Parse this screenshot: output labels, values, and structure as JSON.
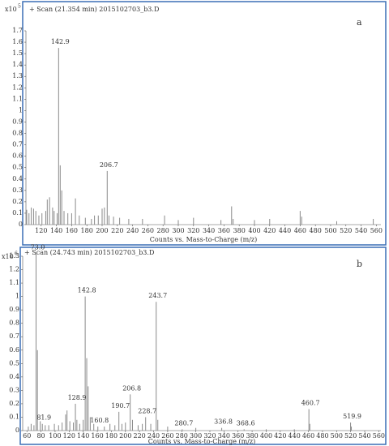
{
  "chart_data": [
    {
      "type": "stem",
      "title": "+ Scan (21.354 min) 2015102703_b3.D",
      "panel_label": "a",
      "y_multiplier": "x10",
      "y_exponent": 5,
      "x_label": "Counts vs. Mass-to-Charge (m/z)",
      "color": "#8a8a8a",
      "x": [
        101,
        104,
        107,
        110,
        113,
        117,
        121,
        126,
        128,
        131,
        135,
        137,
        141,
        142.9,
        145,
        147,
        150,
        155,
        160,
        165,
        170,
        178,
        186,
        190,
        195,
        200,
        203,
        206.7,
        209,
        215,
        223,
        235,
        253,
        282,
        300,
        320,
        356,
        370,
        372,
        400,
        420,
        460,
        462,
        508,
        556
      ],
      "values": [
        0.13,
        0.1,
        0.15,
        0.14,
        0.12,
        0.08,
        0.1,
        0.12,
        0.22,
        0.24,
        0.15,
        0.12,
        0.1,
        1.55,
        0.52,
        0.3,
        0.12,
        0.1,
        0.1,
        0.23,
        0.08,
        0.06,
        0.05,
        0.08,
        0.08,
        0.14,
        0.15,
        0.47,
        0.08,
        0.07,
        0.06,
        0.05,
        0.05,
        0.08,
        0.04,
        0.06,
        0.04,
        0.16,
        0.05,
        0.04,
        0.05,
        0.12,
        0.07,
        0.03,
        0.05
      ],
      "annotations": [
        {
          "text": "142.9",
          "x": 142.9,
          "y": 1.55
        },
        {
          "text": "206.7",
          "x": 206.7,
          "y": 0.47
        }
      ],
      "xlim": [
        100,
        566
      ],
      "ylim": [
        0,
        1.7
      ],
      "xticks": [
        120,
        140,
        160,
        180,
        200,
        220,
        240,
        260,
        280,
        300,
        320,
        340,
        360,
        380,
        400,
        420,
        440,
        460,
        480,
        500,
        520,
        540,
        560
      ],
      "yticks": [
        0,
        0.1,
        0.2,
        0.3,
        0.4,
        0.5,
        0.6,
        0.7,
        0.8,
        0.9,
        1,
        1.1,
        1.2,
        1.3,
        1.4,
        1.5,
        1.6,
        1.7
      ]
    },
    {
      "type": "stem",
      "title": "+ Scan (24.743 min) 2015102703_b3.D",
      "panel_label": "b",
      "y_multiplier": "x10",
      "y_exponent": 6,
      "x_label": "Counts vs. Mass-to-Charge (m/z)",
      "color": "#8a8a8a",
      "x": [
        62,
        66,
        70,
        73,
        75,
        79,
        81.9,
        86,
        91,
        99,
        105,
        110,
        115,
        117,
        121,
        126,
        128.9,
        131,
        135,
        140,
        142.8,
        145,
        147,
        150,
        155,
        160.8,
        170,
        178,
        185,
        190.7,
        195,
        200,
        206.8,
        210,
        218,
        224,
        228.7,
        236,
        243.7,
        246,
        260,
        280.7,
        300,
        336.8,
        368.6,
        400,
        440,
        460.7,
        462,
        519.9,
        521
      ],
      "values": [
        0.03,
        0.05,
        0.04,
        1.32,
        0.6,
        0.07,
        0.05,
        0.04,
        0.04,
        0.05,
        0.04,
        0.06,
        0.12,
        0.15,
        0.07,
        0.06,
        0.2,
        0.08,
        0.05,
        0.08,
        1.0,
        0.54,
        0.33,
        0.1,
        0.05,
        0.03,
        0.03,
        0.05,
        0.04,
        0.14,
        0.05,
        0.06,
        0.27,
        0.08,
        0.04,
        0.05,
        0.1,
        0.05,
        0.96,
        0.08,
        0.03,
        0.01,
        0.02,
        0.02,
        0.01,
        0.01,
        0.01,
        0.16,
        0.05,
        0.06,
        0.03
      ],
      "annotations": [
        {
          "text": "73.0",
          "x": 73,
          "y": 1.32
        },
        {
          "text": "81.9",
          "x": 81.9,
          "y": 0.05
        },
        {
          "text": "128.9",
          "x": 128.9,
          "y": 0.2
        },
        {
          "text": "142.8",
          "x": 142.8,
          "y": 1.0
        },
        {
          "text": "160.8",
          "x": 160.8,
          "y": 0.03
        },
        {
          "text": "190.7",
          "x": 190.7,
          "y": 0.14
        },
        {
          "text": "206.8",
          "x": 206.8,
          "y": 0.27
        },
        {
          "text": "228.7",
          "x": 228.7,
          "y": 0.1
        },
        {
          "text": "243.7",
          "x": 243.7,
          "y": 0.96
        },
        {
          "text": "280.7",
          "x": 280.7,
          "y": 0.01
        },
        {
          "text": "336.8",
          "x": 336.8,
          "y": 0.02
        },
        {
          "text": "368.6",
          "x": 368.6,
          "y": 0.01
        },
        {
          "text": "460.7",
          "x": 460.7,
          "y": 0.16
        },
        {
          "text": "519.9",
          "x": 519.9,
          "y": 0.06
        }
      ],
      "xlim": [
        54,
        563
      ],
      "ylim": [
        0,
        1.3
      ],
      "xticks": [
        60,
        80,
        100,
        120,
        140,
        160,
        180,
        200,
        220,
        240,
        260,
        280,
        300,
        320,
        340,
        360,
        380,
        400,
        420,
        440,
        460,
        480,
        500,
        520,
        540,
        560
      ],
      "yticks": [
        0,
        0.1,
        0.2,
        0.3,
        0.4,
        0.5,
        0.6,
        0.7,
        0.8,
        0.9,
        1,
        1.1,
        1.2,
        1.3
      ]
    }
  ]
}
